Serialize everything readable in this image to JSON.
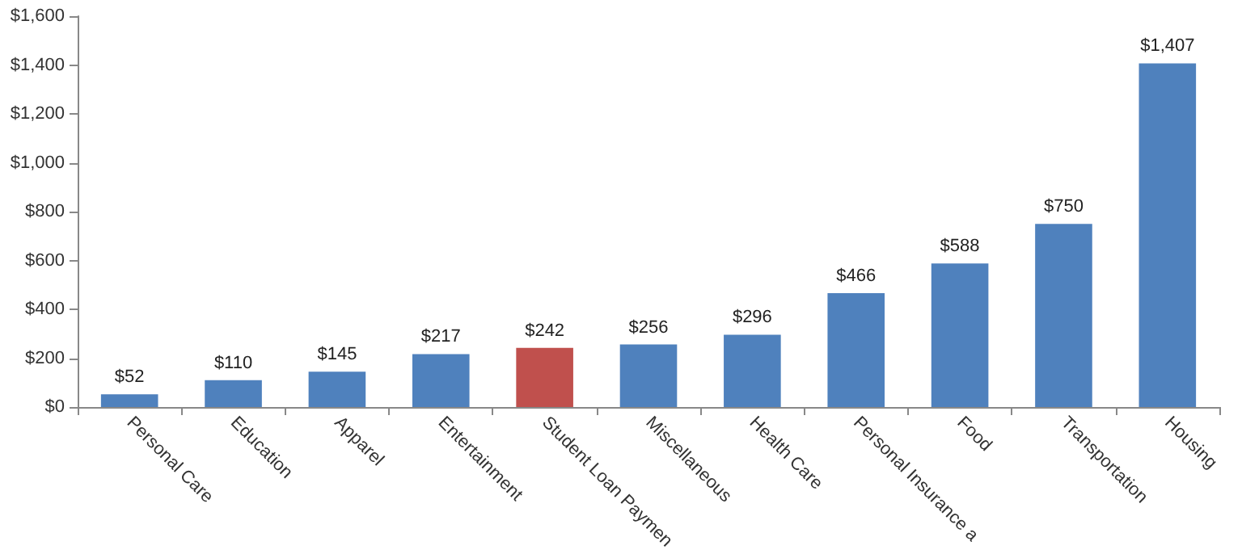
{
  "chart_data": {
    "type": "bar",
    "categories": [
      "Personal Care",
      "Education",
      "Apparel",
      "Entertainment",
      "Student Loan Paymen",
      "Miscellaneous",
      "Health Care",
      "Personal Insurance a",
      "Food",
      "Transportation",
      "Housing"
    ],
    "values": [
      52,
      110,
      145,
      217,
      242,
      256,
      296,
      466,
      588,
      750,
      1407
    ],
    "colors": [
      "#4f81bd",
      "#4f81bd",
      "#4f81bd",
      "#4f81bd",
      "#c0504d",
      "#4f81bd",
      "#4f81bd",
      "#4f81bd",
      "#4f81bd",
      "#4f81bd",
      "#4f81bd"
    ],
    "value_labels": [
      "$52",
      "$110",
      "$145",
      "$217",
      "$242",
      "$256",
      "$296",
      "$466",
      "$588",
      "$750",
      "$1,407"
    ],
    "ylim": [
      0,
      1600
    ],
    "yticks": [
      {
        "value": 0,
        "label": "$0"
      },
      {
        "value": 200,
        "label": "$200"
      },
      {
        "value": 400,
        "label": "$400"
      },
      {
        "value": 600,
        "label": "$600"
      },
      {
        "value": 800,
        "label": "$800"
      },
      {
        "value": 1000,
        "label": "$1,000"
      },
      {
        "value": 1200,
        "label": "$1,200"
      },
      {
        "value": 1400,
        "label": "$1,400"
      },
      {
        "value": 1600,
        "label": "$1,600"
      }
    ],
    "grid": false
  }
}
